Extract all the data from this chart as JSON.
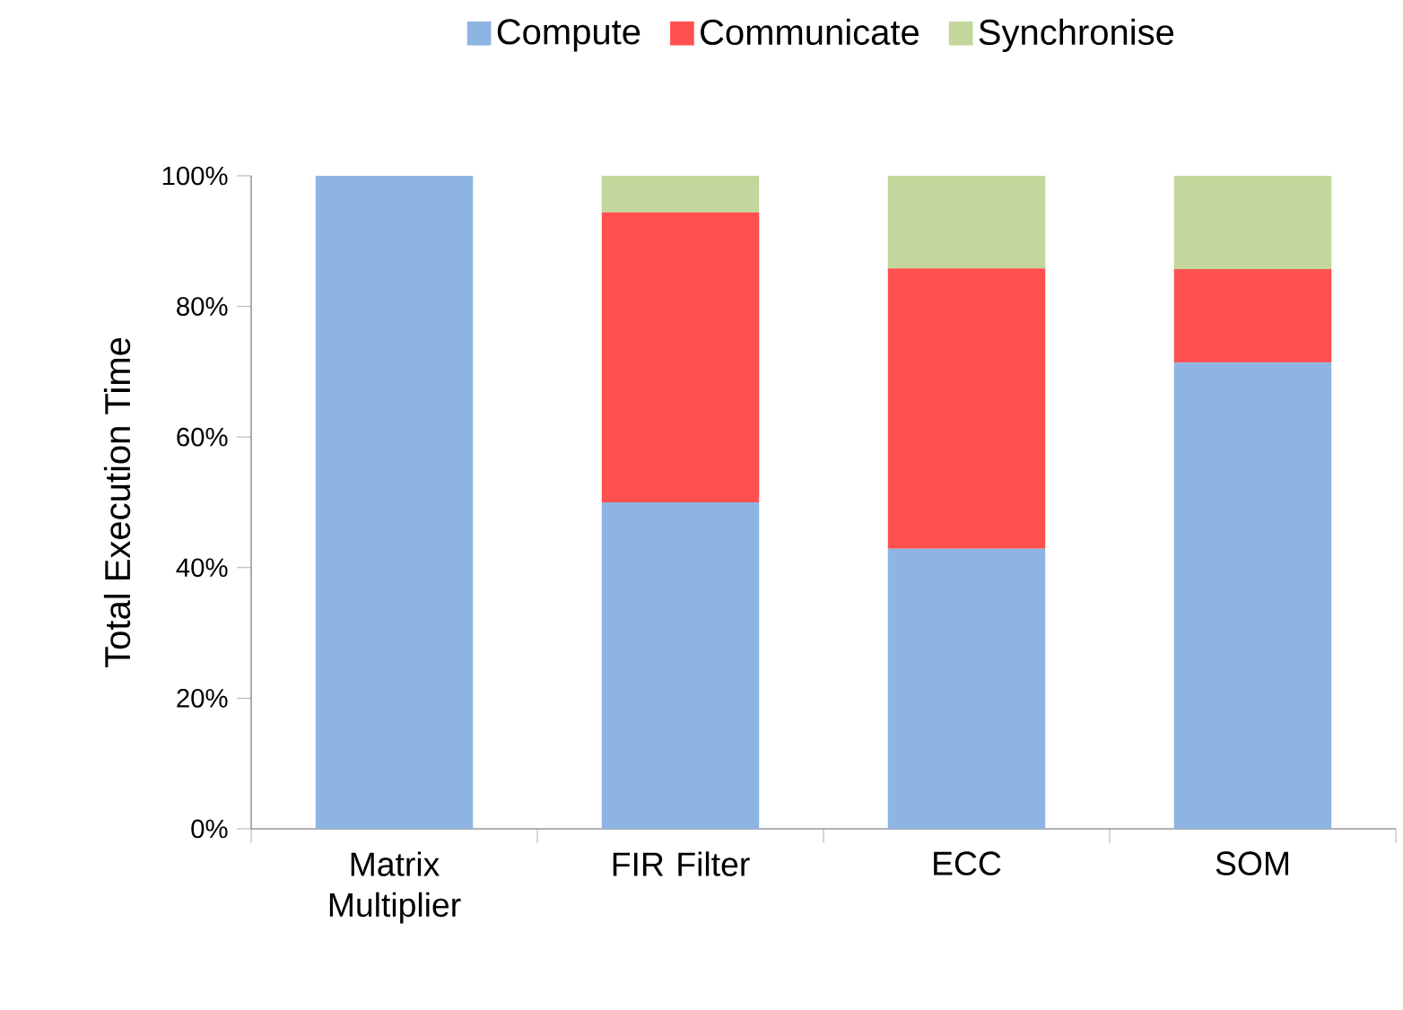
{
  "chart_data": {
    "type": "bar",
    "stacked": true,
    "ylabel": "Total Execution Time",
    "categories": [
      "Matrix Multiplier",
      "FIR Filter",
      "ECC",
      "SOM"
    ],
    "series": [
      {
        "name": "Compute",
        "color": "#8eb4e3",
        "values": [
          100,
          50,
          42.9,
          71.4
        ]
      },
      {
        "name": "Communicate",
        "color": "#ff5050",
        "values": [
          0,
          44.4,
          42.9,
          14.3
        ]
      },
      {
        "name": "Synchronise",
        "color": "#c3d69b",
        "values": [
          0,
          5.6,
          14.3,
          14.3
        ]
      }
    ],
    "ylim": [
      0,
      100
    ],
    "yticks": [
      {
        "value": 0,
        "label": "0%"
      },
      {
        "value": 20,
        "label": "20%"
      },
      {
        "value": 40,
        "label": "40%"
      },
      {
        "value": 60,
        "label": "60%"
      },
      {
        "value": 80,
        "label": "80%"
      },
      {
        "value": 100,
        "label": "100%"
      }
    ],
    "legend": "top",
    "grid": false
  }
}
